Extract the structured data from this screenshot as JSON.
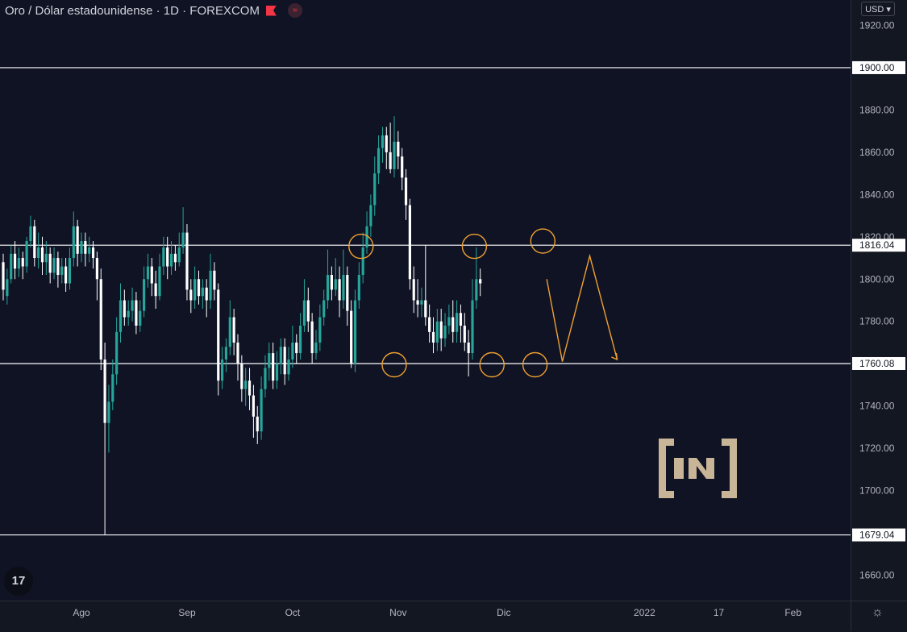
{
  "header": {
    "title": "Oro / Dólar estadounidense · 1D · FOREXCOM",
    "flag_icon": "flag-icon",
    "indicator_icon": "eye-icon"
  },
  "currency_button": "USD",
  "logo": {
    "text": "17"
  },
  "chart_data": {
    "type": "candlestick",
    "title": "Oro / Dólar estadounidense · 1D · FOREXCOM",
    "ylim": [
      1648,
      1932
    ],
    "y_ticks": [
      1660,
      1680,
      1700,
      1720,
      1740,
      1760,
      1780,
      1800,
      1820,
      1840,
      1860,
      1880,
      1900,
      1920
    ],
    "y_tick_labels": [
      "1660.00",
      "1680.00",
      "1700.00",
      "1720.00",
      "1740.00",
      "1760.00",
      "1780.00",
      "1800.00",
      "1820.00",
      "1840.00",
      "1860.00",
      "1880.00",
      "1900.00",
      "1920.00"
    ],
    "x_tick_labels": [
      "Ago",
      "Sep",
      "Oct",
      "Nov",
      "Dic",
      "2022",
      "17",
      "Feb"
    ],
    "x_tick_positions": [
      20,
      47,
      74,
      101,
      128,
      164,
      183,
      202
    ],
    "grid": false,
    "colors": {
      "up": "#26a69a",
      "down": "#ffffff",
      "levels": "#ffffff",
      "annotation": "#f0a030"
    },
    "candles": [
      [
        1808,
        1795,
        1812,
        1790
      ],
      [
        1792,
        1800,
        1805,
        1788
      ],
      [
        1800,
        1812,
        1816,
        1798
      ],
      [
        1812,
        1805,
        1818,
        1800
      ],
      [
        1805,
        1810,
        1815,
        1801
      ],
      [
        1810,
        1806,
        1813,
        1800
      ],
      [
        1806,
        1818,
        1820,
        1803
      ],
      [
        1818,
        1825,
        1830,
        1815
      ],
      [
        1825,
        1810,
        1828,
        1806
      ],
      [
        1810,
        1815,
        1822,
        1805
      ],
      [
        1815,
        1808,
        1820,
        1802
      ],
      [
        1808,
        1812,
        1818,
        1802
      ],
      [
        1812,
        1803,
        1815,
        1798
      ],
      [
        1803,
        1810,
        1815,
        1800
      ],
      [
        1810,
        1802,
        1813,
        1796
      ],
      [
        1802,
        1806,
        1810,
        1798
      ],
      [
        1806,
        1798,
        1810,
        1794
      ],
      [
        1798,
        1810,
        1815,
        1795
      ],
      [
        1810,
        1825,
        1832,
        1806
      ],
      [
        1825,
        1812,
        1828,
        1806
      ],
      [
        1812,
        1818,
        1822,
        1808
      ],
      [
        1818,
        1812,
        1822,
        1806
      ],
      [
        1812,
        1815,
        1820,
        1808
      ],
      [
        1815,
        1810,
        1818,
        1805
      ],
      [
        1810,
        1800,
        1813,
        1790
      ],
      [
        1800,
        1762,
        1805,
        1757
      ],
      [
        1762,
        1732,
        1770,
        1679
      ],
      [
        1732,
        1742,
        1750,
        1718
      ],
      [
        1742,
        1755,
        1762,
        1738
      ],
      [
        1755,
        1775,
        1782,
        1750
      ],
      [
        1775,
        1790,
        1798,
        1770
      ],
      [
        1790,
        1782,
        1795,
        1778
      ],
      [
        1782,
        1785,
        1790,
        1778
      ],
      [
        1785,
        1790,
        1796,
        1780
      ],
      [
        1790,
        1778,
        1794,
        1774
      ],
      [
        1778,
        1785,
        1790,
        1775
      ],
      [
        1785,
        1800,
        1806,
        1782
      ],
      [
        1800,
        1806,
        1812,
        1796
      ],
      [
        1806,
        1798,
        1810,
        1792
      ],
      [
        1798,
        1792,
        1804,
        1786
      ],
      [
        1792,
        1806,
        1812,
        1790
      ],
      [
        1806,
        1815,
        1820,
        1802
      ],
      [
        1815,
        1806,
        1820,
        1800
      ],
      [
        1806,
        1812,
        1818,
        1802
      ],
      [
        1812,
        1808,
        1816,
        1804
      ],
      [
        1808,
        1815,
        1822,
        1806
      ],
      [
        1815,
        1822,
        1834,
        1812
      ],
      [
        1822,
        1795,
        1826,
        1790
      ],
      [
        1795,
        1790,
        1800,
        1784
      ],
      [
        1790,
        1800,
        1806,
        1786
      ],
      [
        1800,
        1792,
        1804,
        1788
      ],
      [
        1792,
        1796,
        1800,
        1786
      ],
      [
        1796,
        1790,
        1800,
        1782
      ],
      [
        1790,
        1804,
        1812,
        1786
      ],
      [
        1804,
        1795,
        1808,
        1790
      ],
      [
        1795,
        1752,
        1798,
        1745
      ],
      [
        1752,
        1762,
        1768,
        1748
      ],
      [
        1762,
        1768,
        1772,
        1756
      ],
      [
        1768,
        1782,
        1790,
        1764
      ],
      [
        1782,
        1770,
        1786,
        1764
      ],
      [
        1770,
        1760,
        1774,
        1752
      ],
      [
        1760,
        1748,
        1764,
        1742
      ],
      [
        1748,
        1752,
        1758,
        1740
      ],
      [
        1752,
        1745,
        1758,
        1738
      ],
      [
        1745,
        1735,
        1750,
        1725
      ],
      [
        1735,
        1728,
        1740,
        1722
      ],
      [
        1728,
        1748,
        1754,
        1724
      ],
      [
        1748,
        1758,
        1764,
        1744
      ],
      [
        1758,
        1765,
        1770,
        1752
      ],
      [
        1765,
        1752,
        1770,
        1748
      ],
      [
        1752,
        1760,
        1766,
        1748
      ],
      [
        1760,
        1768,
        1772,
        1755
      ],
      [
        1768,
        1755,
        1772,
        1750
      ],
      [
        1755,
        1762,
        1768,
        1752
      ],
      [
        1762,
        1770,
        1778,
        1758
      ],
      [
        1770,
        1765,
        1774,
        1760
      ],
      [
        1765,
        1778,
        1784,
        1762
      ],
      [
        1778,
        1790,
        1800,
        1775
      ],
      [
        1790,
        1780,
        1796,
        1775
      ],
      [
        1780,
        1765,
        1784,
        1760
      ],
      [
        1765,
        1770,
        1776,
        1762
      ],
      [
        1770,
        1782,
        1788,
        1766
      ],
      [
        1782,
        1790,
        1795,
        1778
      ],
      [
        1790,
        1802,
        1814,
        1786
      ],
      [
        1802,
        1795,
        1806,
        1790
      ],
      [
        1795,
        1800,
        1810,
        1792
      ],
      [
        1800,
        1790,
        1806,
        1782
      ],
      [
        1790,
        1802,
        1814,
        1786
      ],
      [
        1802,
        1785,
        1806,
        1778
      ],
      [
        1785,
        1760,
        1790,
        1758
      ],
      [
        1760,
        1790,
        1795,
        1756
      ],
      [
        1790,
        1802,
        1808,
        1786
      ],
      [
        1802,
        1815,
        1822,
        1798
      ],
      [
        1815,
        1825,
        1832,
        1812
      ],
      [
        1825,
        1835,
        1840,
        1820
      ],
      [
        1835,
        1850,
        1858,
        1830
      ],
      [
        1850,
        1862,
        1868,
        1845
      ],
      [
        1862,
        1868,
        1872,
        1855
      ],
      [
        1868,
        1860,
        1872,
        1852
      ],
      [
        1860,
        1852,
        1874,
        1850
      ],
      [
        1852,
        1865,
        1877,
        1848
      ],
      [
        1865,
        1858,
        1870,
        1852
      ],
      [
        1858,
        1848,
        1862,
        1842
      ],
      [
        1848,
        1835,
        1852,
        1828
      ],
      [
        1835,
        1800,
        1838,
        1795
      ],
      [
        1800,
        1790,
        1806,
        1784
      ],
      [
        1790,
        1788,
        1800,
        1782
      ],
      [
        1788,
        1790,
        1796,
        1782
      ],
      [
        1790,
        1782,
        1816,
        1778
      ],
      [
        1782,
        1775,
        1788,
        1770
      ],
      [
        1775,
        1770,
        1782,
        1765
      ],
      [
        1770,
        1780,
        1786,
        1766
      ],
      [
        1780,
        1772,
        1786,
        1766
      ],
      [
        1772,
        1778,
        1784,
        1768
      ],
      [
        1778,
        1782,
        1788,
        1774
      ],
      [
        1782,
        1775,
        1790,
        1770
      ],
      [
        1775,
        1784,
        1790,
        1770
      ],
      [
        1784,
        1778,
        1788,
        1770
      ],
      [
        1778,
        1770,
        1784,
        1766
      ],
      [
        1770,
        1765,
        1776,
        1754
      ],
      [
        1765,
        1790,
        1800,
        1762
      ],
      [
        1790,
        1800,
        1815,
        1786
      ],
      [
        1800,
        1798,
        1805,
        1792
      ]
    ],
    "levels": [
      {
        "value": 1900.0,
        "label": "1900.00"
      },
      {
        "value": 1816.04,
        "label": "1816.04"
      },
      {
        "value": 1760.08,
        "label": "1760.08"
      },
      {
        "value": 1679.04,
        "label": "1679.04"
      }
    ],
    "circles": [
      {
        "bar": 91.5,
        "price": 1815.5
      },
      {
        "bar": 100,
        "price": 1759.5
      },
      {
        "bar": 120.5,
        "price": 1815.5
      },
      {
        "bar": 125,
        "price": 1759.5
      },
      {
        "bar": 136,
        "price": 1759.5
      },
      {
        "bar": 138,
        "price": 1818
      }
    ],
    "projection": [
      [
        139,
        1800
      ],
      [
        143,
        1761
      ],
      [
        150,
        1811
      ],
      [
        157,
        1762
      ]
    ]
  }
}
